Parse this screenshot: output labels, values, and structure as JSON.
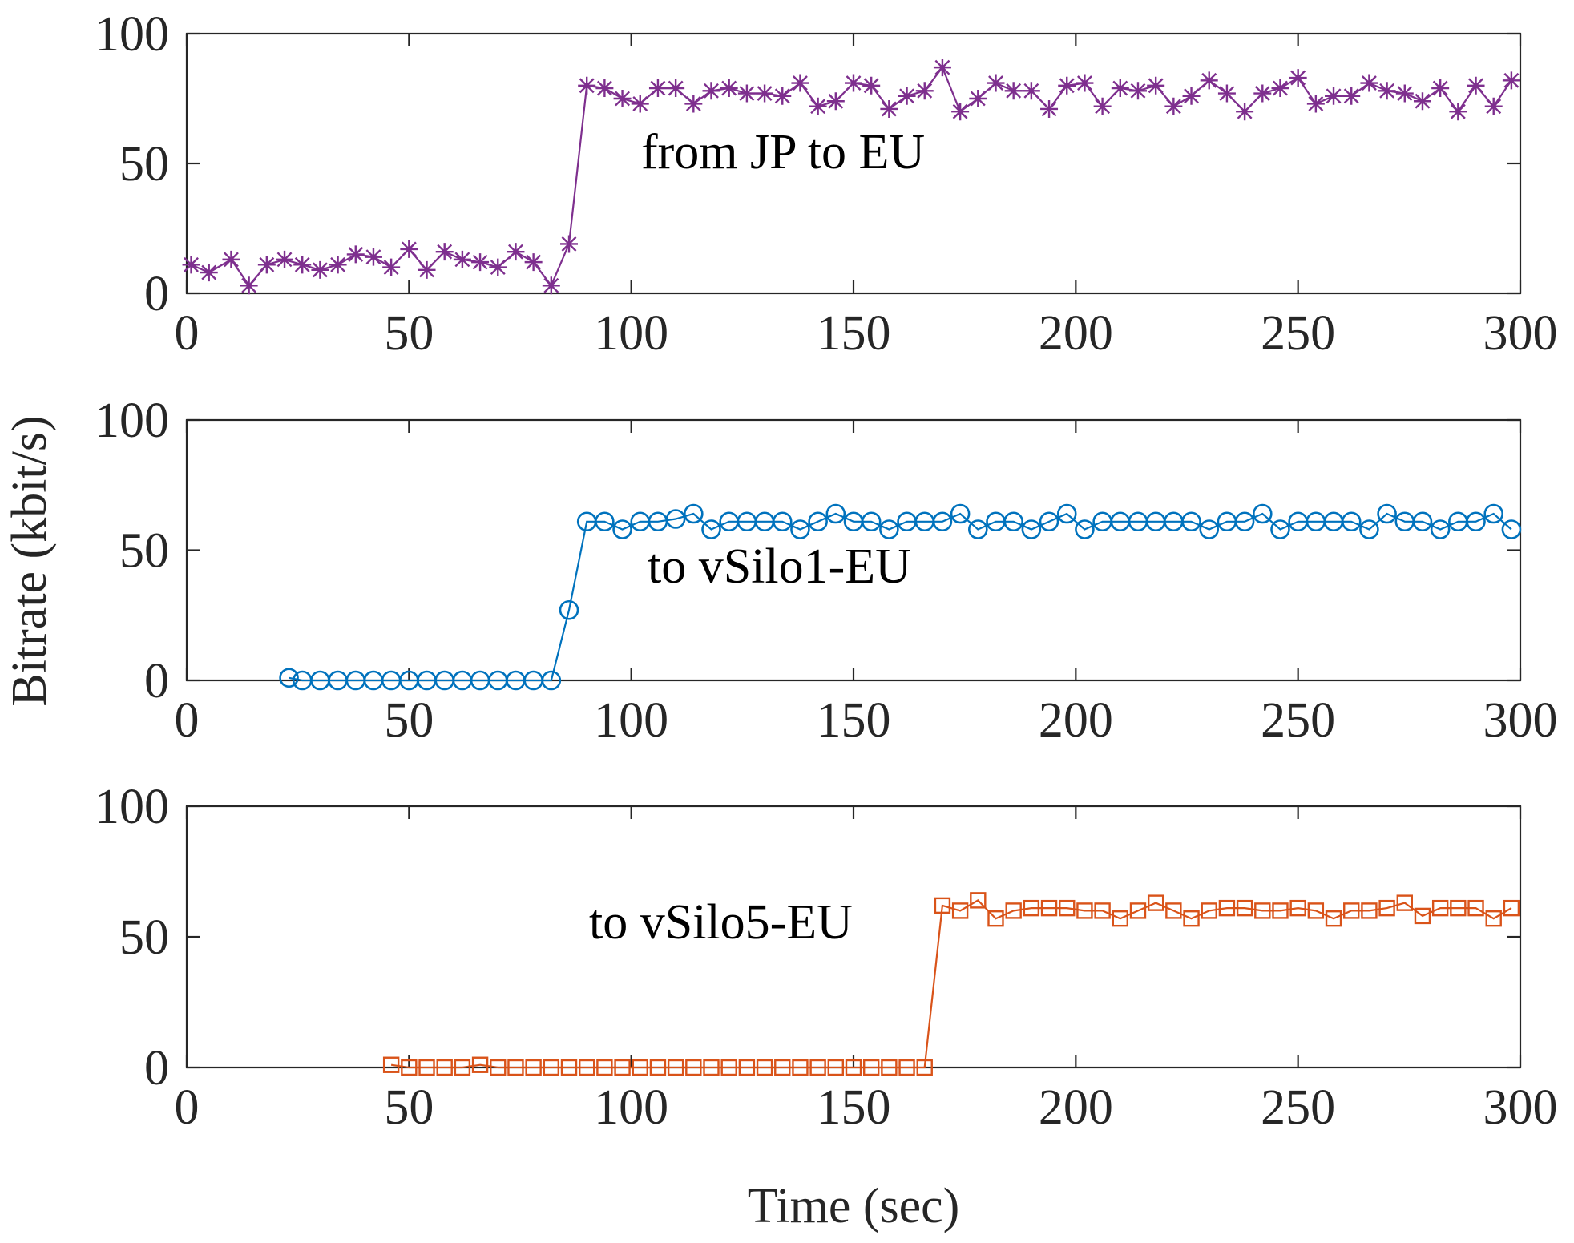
{
  "chart_data": {
    "type": "line",
    "ylabel": "Bitrate (kbit/s)",
    "xlabel": "Time (sec)",
    "panels": [
      {
        "annotation": "from JP to EU",
        "color": "#7e2f8e",
        "marker": "asterisk",
        "xlim": [
          0,
          300
        ],
        "ylim": [
          0,
          100
        ],
        "xticks": [
          0,
          50,
          100,
          150,
          200,
          250,
          300
        ],
        "yticks": [
          0,
          50,
          100
        ],
        "x": [
          1,
          5,
          10,
          14,
          18,
          22,
          26,
          30,
          34,
          38,
          42,
          46,
          50,
          54,
          58,
          62,
          66,
          70,
          74,
          78,
          82,
          86,
          90,
          94,
          98,
          102,
          106,
          110,
          114,
          118,
          122,
          126,
          130,
          134,
          138,
          142,
          146,
          150,
          154,
          158,
          162,
          166,
          170,
          174,
          178,
          182,
          186,
          190,
          194,
          198,
          202,
          206,
          210,
          214,
          218,
          222,
          226,
          230,
          234,
          238,
          242,
          246,
          250,
          254,
          258,
          262,
          266,
          270,
          274,
          278,
          282,
          286,
          290,
          294,
          298
        ],
        "y": [
          11,
          8,
          13,
          3,
          11,
          13,
          11,
          9,
          11,
          15,
          14,
          10,
          17,
          9,
          16,
          13,
          12,
          10,
          16,
          12,
          3,
          19,
          80,
          79,
          75,
          73,
          79,
          79,
          73,
          78,
          79,
          77,
          77,
          76,
          81,
          72,
          74,
          81,
          80,
          71,
          76,
          78,
          87,
          70,
          75,
          81,
          78,
          78,
          71,
          80,
          81,
          72,
          79,
          78,
          80,
          72,
          76,
          82,
          77,
          70,
          77,
          79,
          83,
          73,
          76,
          76,
          81,
          78,
          77,
          74,
          79,
          70,
          80,
          72,
          82
        ]
      },
      {
        "annotation": "to vSilo1-EU",
        "color": "#0072bd",
        "marker": "circle",
        "xlim": [
          0,
          300
        ],
        "ylim": [
          0,
          100
        ],
        "xticks": [
          0,
          50,
          100,
          150,
          200,
          250,
          300
        ],
        "yticks": [
          0,
          50,
          100
        ],
        "x": [
          23,
          26,
          30,
          34,
          38,
          42,
          46,
          50,
          54,
          58,
          62,
          66,
          70,
          74,
          78,
          82,
          86,
          90,
          94,
          98,
          102,
          106,
          110,
          114,
          118,
          122,
          126,
          130,
          134,
          138,
          142,
          146,
          150,
          154,
          158,
          162,
          166,
          170,
          174,
          178,
          182,
          186,
          190,
          194,
          198,
          202,
          206,
          210,
          214,
          218,
          222,
          226,
          230,
          234,
          238,
          242,
          246,
          250,
          254,
          258,
          262,
          266,
          270,
          274,
          278,
          282,
          286,
          290,
          294,
          298
        ],
        "y": [
          1,
          0,
          0,
          0,
          0,
          0,
          0,
          0,
          0,
          0,
          0,
          0,
          0,
          0,
          0,
          0,
          27,
          61,
          61,
          58,
          61,
          61,
          62,
          64,
          58,
          61,
          61,
          61,
          61,
          58,
          61,
          64,
          61,
          61,
          58,
          61,
          61,
          61,
          64,
          58,
          61,
          61,
          58,
          61,
          64,
          58,
          61,
          61,
          61,
          61,
          61,
          61,
          58,
          61,
          61,
          64,
          58,
          61,
          61,
          61,
          61,
          58,
          64,
          61,
          61,
          58,
          61,
          61,
          64,
          58
        ]
      },
      {
        "annotation": "to vSilo5-EU",
        "color": "#d95319",
        "marker": "square",
        "xlim": [
          0,
          300
        ],
        "ylim": [
          0,
          100
        ],
        "xticks": [
          0,
          50,
          100,
          150,
          200,
          250,
          300
        ],
        "yticks": [
          0,
          50,
          100
        ],
        "x": [
          46,
          50,
          54,
          58,
          62,
          66,
          70,
          74,
          78,
          82,
          86,
          90,
          94,
          98,
          102,
          106,
          110,
          114,
          118,
          122,
          126,
          130,
          134,
          138,
          142,
          146,
          150,
          154,
          158,
          162,
          166,
          170,
          174,
          178,
          182,
          186,
          190,
          194,
          198,
          202,
          206,
          210,
          214,
          218,
          222,
          226,
          230,
          234,
          238,
          242,
          246,
          250,
          254,
          258,
          262,
          266,
          270,
          274,
          278,
          282,
          286,
          290,
          294,
          298
        ],
        "y": [
          1,
          0,
          0,
          0,
          0,
          1,
          0,
          0,
          0,
          0,
          0,
          0,
          0,
          0,
          0,
          0,
          0,
          0,
          0,
          0,
          0,
          0,
          0,
          0,
          0,
          0,
          0,
          0,
          0,
          0,
          0,
          62,
          60,
          64,
          57,
          60,
          61,
          61,
          61,
          60,
          60,
          57,
          60,
          63,
          60,
          57,
          60,
          61,
          61,
          60,
          60,
          61,
          60,
          57,
          60,
          60,
          61,
          63,
          58,
          61,
          61,
          61,
          57,
          61
        ]
      }
    ]
  }
}
